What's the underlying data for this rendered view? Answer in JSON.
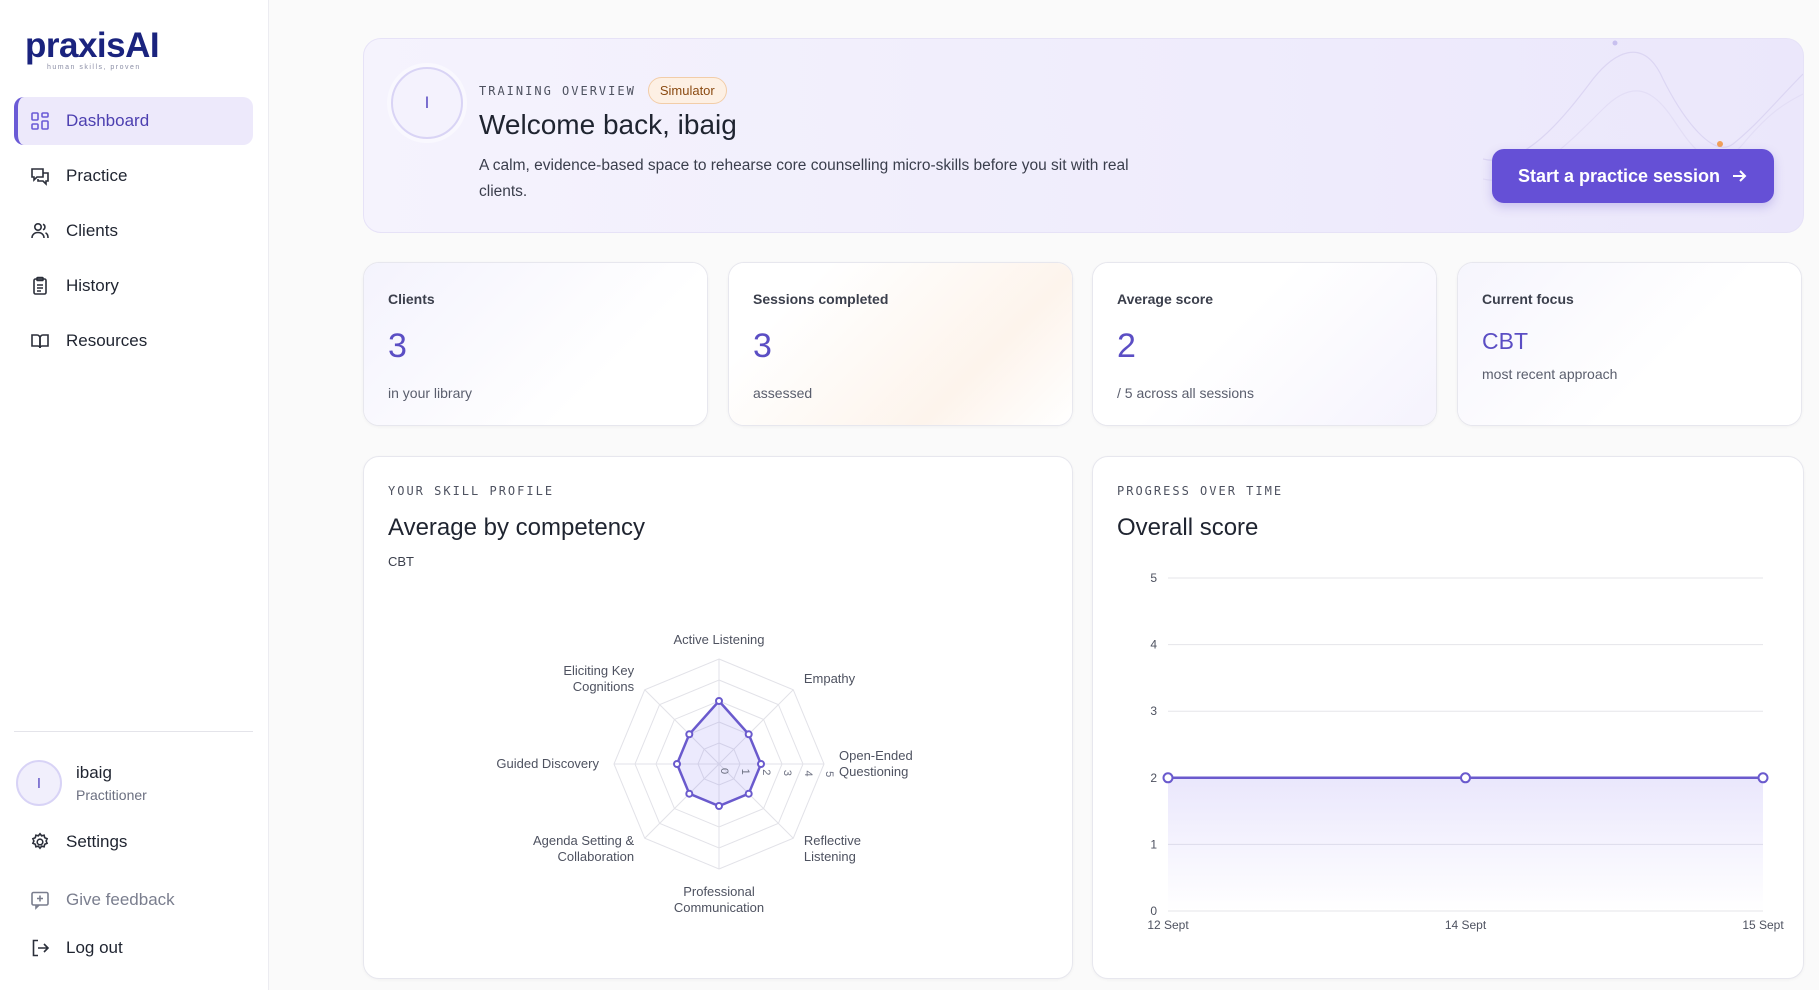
{
  "brand": {
    "name_main": "praxis",
    "name_ai": "AI",
    "tagline": "human skills, proven"
  },
  "sidebar": {
    "items": [
      {
        "label": "Dashboard",
        "icon": "grid-icon",
        "active": true
      },
      {
        "label": "Practice",
        "icon": "chat-icon",
        "active": false
      },
      {
        "label": "Clients",
        "icon": "users-icon",
        "active": false
      },
      {
        "label": "History",
        "icon": "clipboard-icon",
        "active": false
      },
      {
        "label": "Resources",
        "icon": "book-icon",
        "active": false
      }
    ],
    "user": {
      "initial": "I",
      "name": "ibaig",
      "role": "Practitioner"
    },
    "settings_label": "Settings",
    "feedback_label": "Give feedback",
    "logout_label": "Log out"
  },
  "hero": {
    "avatar_initial": "I",
    "eyebrow": "TRAINING OVERVIEW",
    "badge": "Simulator",
    "title": "Welcome back, ibaig",
    "description": "A calm, evidence-based space to rehearse core counselling micro-skills before you sit with real clients.",
    "cta_label": "Start a practice session"
  },
  "stats": [
    {
      "label": "Clients",
      "value": "3",
      "sub": "in your library"
    },
    {
      "label": "Sessions completed",
      "value": "3",
      "sub": "assessed"
    },
    {
      "label": "Average score",
      "value": "2",
      "sub": "/ 5 across all sessions"
    },
    {
      "label": "Current focus",
      "value": "CBT",
      "sub": "most recent approach"
    }
  ],
  "skill_panel": {
    "eyebrow": "YOUR SKILL PROFILE",
    "title": "Average by competency",
    "subtitle": "CBT"
  },
  "progress_panel": {
    "eyebrow": "PROGRESS OVER TIME",
    "title": "Overall score"
  },
  "colors": {
    "accent": "#6550d6",
    "accent_text": "#5b4ec4",
    "badge_bg": "#fdf0e4"
  },
  "chart_data": [
    {
      "type": "radar",
      "title": "Average by competency",
      "subtitle": "CBT",
      "categories": [
        "Active Listening",
        "Empathy",
        "Open-Ended Questioning",
        "Reflective Listening",
        "Professional Communication",
        "Agenda Setting & Collaboration",
        "Guided Discovery",
        "Eliciting Key Cognitions"
      ],
      "labels_display": [
        [
          "Active Listening"
        ],
        [
          "Empathy"
        ],
        [
          "Open-Ended",
          "Questioning"
        ],
        [
          "Reflective",
          "Listening"
        ],
        [
          "Professional",
          "Communication"
        ],
        [
          "Agenda Setting &",
          "Collaboration"
        ],
        [
          "Guided Discovery"
        ],
        [
          "Eliciting Key",
          "Cognitions"
        ]
      ],
      "values": [
        3,
        2,
        2,
        2,
        2,
        2,
        2,
        2
      ],
      "rlim": [
        0,
        5
      ],
      "ticks": [
        "0",
        "1",
        "2",
        "3",
        "4",
        "5"
      ]
    },
    {
      "type": "line",
      "title": "Overall score",
      "x": [
        "12 Sept",
        "14 Sept",
        "15 Sept"
      ],
      "values": [
        2,
        2,
        2
      ],
      "ylim": [
        0,
        5
      ],
      "yticks": [
        "0",
        "1",
        "2",
        "3",
        "4",
        "5"
      ],
      "grid": true
    }
  ]
}
